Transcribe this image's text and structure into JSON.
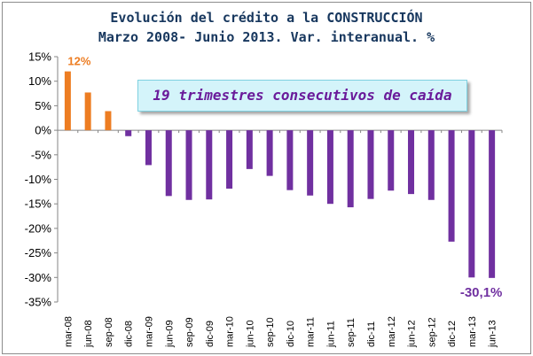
{
  "chart_data": {
    "type": "bar",
    "title": "Evolución del crédito a la CONSTRUCCIÓN",
    "subtitle": "Marzo 2008- Junio 2013. Var. interanual. %",
    "categories": [
      "mar-08",
      "jun-08",
      "sep-08",
      "dic-08",
      "mar-09",
      "jun-09",
      "sep-09",
      "dic-09",
      "mar-10",
      "jun-10",
      "sep-10",
      "dic-10",
      "mar-11",
      "jun-11",
      "sep-11",
      "dic-11",
      "mar-12",
      "jun-12",
      "sep-12",
      "dic-12",
      "mar-13",
      "jun-13"
    ],
    "values": [
      12.0,
      7.7,
      3.9,
      -1.2,
      -7.1,
      -13.4,
      -14.2,
      -14.1,
      -11.9,
      -7.9,
      -9.3,
      -12.2,
      -13.3,
      -15.0,
      -15.7,
      -14.0,
      -12.3,
      -13.0,
      -14.2,
      -22.7,
      -30.0,
      -30.1
    ],
    "ylim": [
      -35,
      15
    ],
    "yticks": [
      "15%",
      "10%",
      "5%",
      "0%",
      "-5%",
      "-10%",
      "-15%",
      "-20%",
      "-25%",
      "-30%",
      "-35%"
    ],
    "ytick_values": [
      15,
      10,
      5,
      0,
      -5,
      -10,
      -15,
      -20,
      -25,
      -30,
      -35
    ],
    "grid": false,
    "colors": {
      "positive": "#ed7d22",
      "negative": "#7030a0",
      "title": "#17375e"
    },
    "data_labels": [
      {
        "index": 0,
        "text": "12%",
        "color": "#ed7d22"
      },
      {
        "index": 21,
        "text": "-30,1%",
        "color": "#7030a0"
      }
    ],
    "annotation": "19 trimestres consecutivos de caída"
  }
}
